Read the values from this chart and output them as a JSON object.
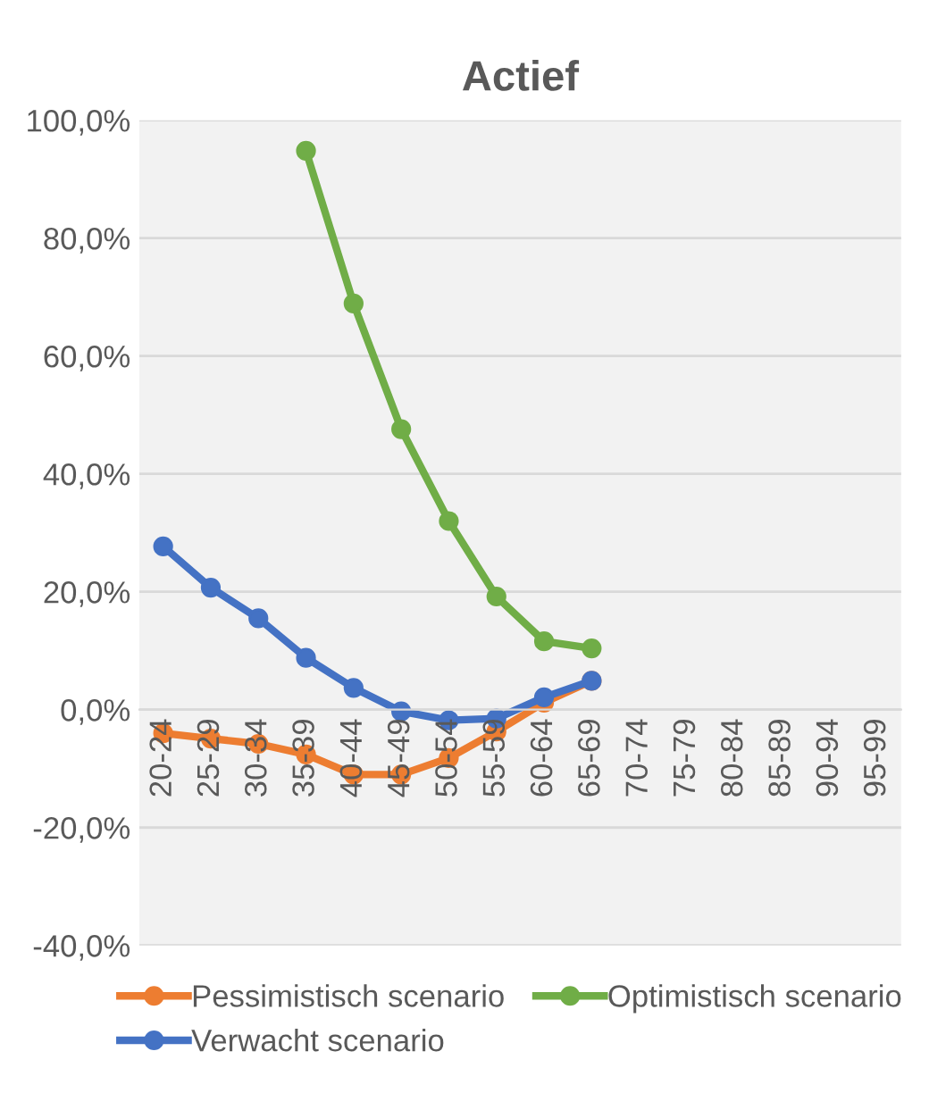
{
  "chart_data": {
    "type": "line",
    "title": "Actief",
    "categories": [
      "20-24",
      "25-29",
      "30-34",
      "35-39",
      "40-44",
      "45-49",
      "50-54",
      "55-59",
      "60-64",
      "65-69",
      "70-74",
      "75-79",
      "80-84",
      "85-89",
      "90-94",
      "95-99"
    ],
    "series": [
      {
        "name": "Pessimistisch scenario",
        "color": "#ed7d31",
        "values": [
          -4.0,
          -4.9,
          -5.8,
          -7.6,
          -11.0,
          -11.0,
          -8.2,
          -3.7,
          1.2,
          4.9,
          null,
          null,
          null,
          null,
          null,
          null
        ]
      },
      {
        "name": "Optimistisch scenario",
        "color": "#70ad47",
        "values": [
          null,
          null,
          null,
          94.8,
          68.9,
          47.6,
          32.0,
          19.2,
          11.6,
          10.4,
          null,
          null,
          null,
          null,
          null,
          null
        ]
      },
      {
        "name": "Verwacht scenario",
        "color": "#4472c4",
        "values": [
          27.7,
          20.7,
          15.5,
          8.8,
          3.7,
          -0.3,
          -1.8,
          -1.5,
          2.1,
          4.9,
          null,
          null,
          null,
          null,
          null,
          null
        ]
      }
    ],
    "ylim": [
      -40,
      100
    ],
    "yticks": [
      {
        "value": -40,
        "label": "-40,0%"
      },
      {
        "value": -20,
        "label": "-20,0%"
      },
      {
        "value": 0,
        "label": "0,0%"
      },
      {
        "value": 20,
        "label": "20,0%"
      },
      {
        "value": 40,
        "label": "40,0%"
      },
      {
        "value": 60,
        "label": "60,0%"
      },
      {
        "value": 80,
        "label": "80,0%"
      },
      {
        "value": 100,
        "label": "100,0%"
      }
    ],
    "grid": "y",
    "legend": "bottom",
    "marker": "circle",
    "line_style": "solid"
  }
}
